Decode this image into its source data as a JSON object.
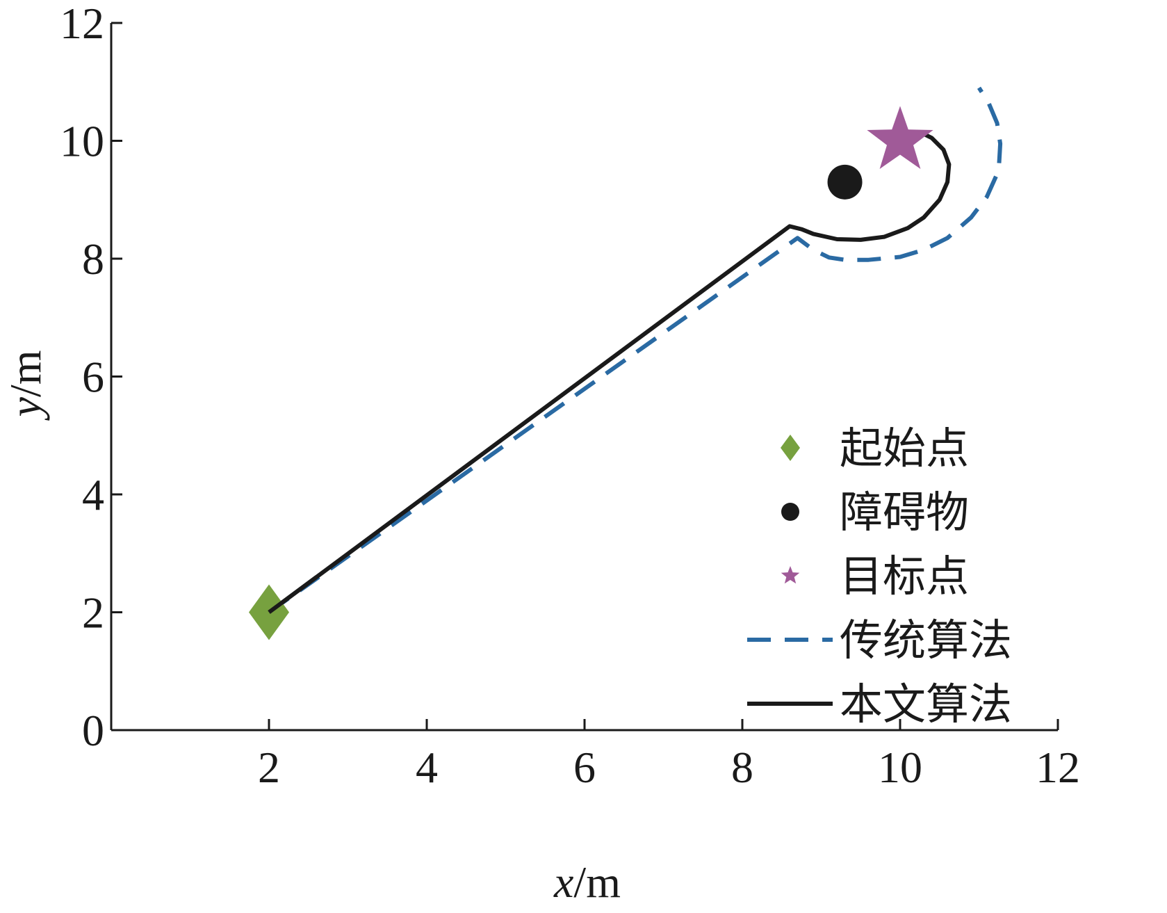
{
  "chart_data": {
    "type": "line",
    "xlabel_var": "x",
    "xlabel_unit": "/m",
    "ylabel_var": "y",
    "ylabel_unit": "/m",
    "xlim": [
      0,
      12
    ],
    "ylim": [
      0,
      12
    ],
    "xticks": [
      2,
      4,
      6,
      8,
      10,
      12
    ],
    "yticks": [
      0,
      2,
      4,
      6,
      8,
      10,
      12
    ],
    "grid": false,
    "legend_position": "bottom-right",
    "start_point": {
      "name": "起始点",
      "x": 2,
      "y": 2,
      "color": "#77a13f",
      "marker": "diamond"
    },
    "obstacle": {
      "name": "障碍物",
      "x": 9.3,
      "y": 9.3,
      "color": "#1a1a1a",
      "marker": "circle"
    },
    "goal_point": {
      "name": "目标点",
      "x": 10,
      "y": 10,
      "color": "#a05a98",
      "marker": "star"
    },
    "series": [
      {
        "name": "传统算法",
        "style": "dashed",
        "color": "#2a6aa3",
        "points": [
          [
            2.0,
            2.0
          ],
          [
            8.7,
            8.35
          ],
          [
            8.9,
            8.15
          ],
          [
            9.1,
            8.02
          ],
          [
            9.3,
            7.98
          ],
          [
            9.6,
            7.98
          ],
          [
            10.0,
            8.03
          ],
          [
            10.3,
            8.15
          ],
          [
            10.6,
            8.35
          ],
          [
            10.9,
            8.7
          ],
          [
            11.1,
            9.05
          ],
          [
            11.25,
            9.5
          ],
          [
            11.27,
            9.95
          ],
          [
            11.23,
            10.3
          ],
          [
            11.12,
            10.65
          ],
          [
            11.0,
            10.9
          ]
        ]
      },
      {
        "name": "本文算法",
        "style": "solid",
        "color": "#1a1a1a",
        "points": [
          [
            2.0,
            2.0
          ],
          [
            8.6,
            8.55
          ],
          [
            8.75,
            8.5
          ],
          [
            8.9,
            8.42
          ],
          [
            9.2,
            8.33
          ],
          [
            9.5,
            8.32
          ],
          [
            9.8,
            8.37
          ],
          [
            10.1,
            8.52
          ],
          [
            10.3,
            8.7
          ],
          [
            10.5,
            9.0
          ],
          [
            10.6,
            9.3
          ],
          [
            10.62,
            9.6
          ],
          [
            10.55,
            9.85
          ],
          [
            10.4,
            10.05
          ],
          [
            10.25,
            10.15
          ]
        ]
      }
    ]
  }
}
